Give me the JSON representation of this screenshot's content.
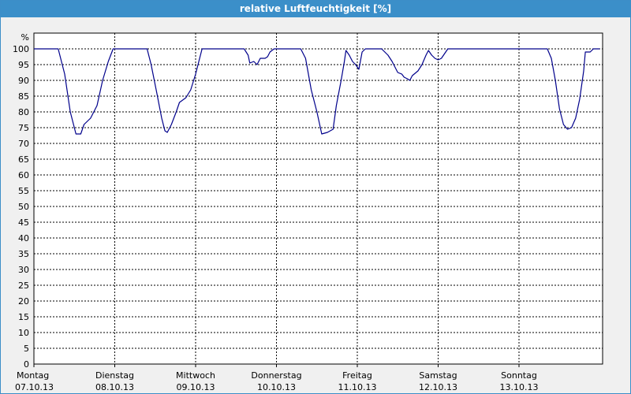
{
  "window": {
    "title": "relative Luftfeuchtigkeit [%]"
  },
  "chart_data": {
    "type": "line",
    "title": "relative Luftfeuchtigkeit [%]",
    "ylabel": "%",
    "xlabel": "",
    "ylim": [
      0,
      100
    ],
    "ytick_step": 5,
    "grid": true,
    "line_color": "#00008b",
    "categories": [
      {
        "day": "Montag",
        "date": "07.10.13"
      },
      {
        "day": "Dienstag",
        "date": "08.10.13"
      },
      {
        "day": "Mittwoch",
        "date": "09.10.13"
      },
      {
        "day": "Donnerstag",
        "date": "10.10.13"
      },
      {
        "day": "Freitag",
        "date": "11.10.13"
      },
      {
        "day": "Samstag",
        "date": "12.10.13"
      },
      {
        "day": "Sonntag",
        "date": "13.10.13"
      }
    ],
    "series": [
      {
        "x_unit": "days since 07.10.13 00:00",
        "points": [
          [
            0.0,
            100
          ],
          [
            0.3,
            100
          ],
          [
            0.38,
            92
          ],
          [
            0.45,
            80
          ],
          [
            0.52,
            73
          ],
          [
            0.58,
            73
          ],
          [
            0.62,
            76
          ],
          [
            0.7,
            78
          ],
          [
            0.78,
            82
          ],
          [
            0.85,
            90
          ],
          [
            0.92,
            96
          ],
          [
            0.98,
            100
          ],
          [
            1.0,
            100
          ],
          [
            1.4,
            100
          ],
          [
            1.45,
            95
          ],
          [
            1.52,
            86
          ],
          [
            1.58,
            78
          ],
          [
            1.62,
            74
          ],
          [
            1.65,
            73.5
          ],
          [
            1.7,
            76
          ],
          [
            1.76,
            80
          ],
          [
            1.8,
            83
          ],
          [
            1.88,
            84.5
          ],
          [
            1.94,
            87
          ],
          [
            2.0,
            92
          ],
          [
            2.05,
            97
          ],
          [
            2.08,
            100
          ],
          [
            2.1,
            100
          ],
          [
            2.6,
            100
          ],
          [
            2.65,
            98
          ],
          [
            2.67,
            95.5
          ],
          [
            2.72,
            96
          ],
          [
            2.76,
            95
          ],
          [
            2.8,
            97
          ],
          [
            2.86,
            97
          ],
          [
            2.89,
            97.5
          ],
          [
            2.92,
            99
          ],
          [
            2.97,
            100
          ],
          [
            3.3,
            100
          ],
          [
            3.36,
            97
          ],
          [
            3.43,
            87
          ],
          [
            3.5,
            80
          ],
          [
            3.56,
            73
          ],
          [
            3.63,
            73.5
          ],
          [
            3.7,
            74.5
          ],
          [
            3.74,
            82
          ],
          [
            3.8,
            90
          ],
          [
            3.84,
            96
          ],
          [
            3.86,
            99.5
          ],
          [
            3.9,
            98
          ],
          [
            3.94,
            96
          ],
          [
            3.98,
            95
          ],
          [
            4.02,
            93.5
          ],
          [
            4.06,
            99
          ],
          [
            4.1,
            100
          ],
          [
            4.3,
            100
          ],
          [
            4.38,
            98
          ],
          [
            4.43,
            96
          ],
          [
            4.47,
            94
          ],
          [
            4.5,
            92.5
          ],
          [
            4.55,
            92
          ],
          [
            4.58,
            91
          ],
          [
            4.62,
            90.5
          ],
          [
            4.65,
            90
          ],
          [
            4.68,
            91.5
          ],
          [
            4.75,
            93
          ],
          [
            4.8,
            95
          ],
          [
            4.85,
            98
          ],
          [
            4.88,
            99.5
          ],
          [
            4.92,
            98
          ],
          [
            4.96,
            97
          ],
          [
            5.0,
            96.5
          ],
          [
            5.04,
            97
          ],
          [
            5.08,
            98.5
          ],
          [
            5.12,
            100
          ],
          [
            6.35,
            100
          ],
          [
            6.4,
            97
          ],
          [
            6.45,
            90
          ],
          [
            6.5,
            81
          ],
          [
            6.55,
            76
          ],
          [
            6.6,
            74.5
          ],
          [
            6.65,
            75
          ],
          [
            6.7,
            78
          ],
          [
            6.75,
            84
          ],
          [
            6.8,
            93
          ],
          [
            6.82,
            99
          ],
          [
            6.88,
            99
          ],
          [
            6.92,
            100
          ],
          [
            7.0,
            100
          ]
        ]
      }
    ]
  }
}
